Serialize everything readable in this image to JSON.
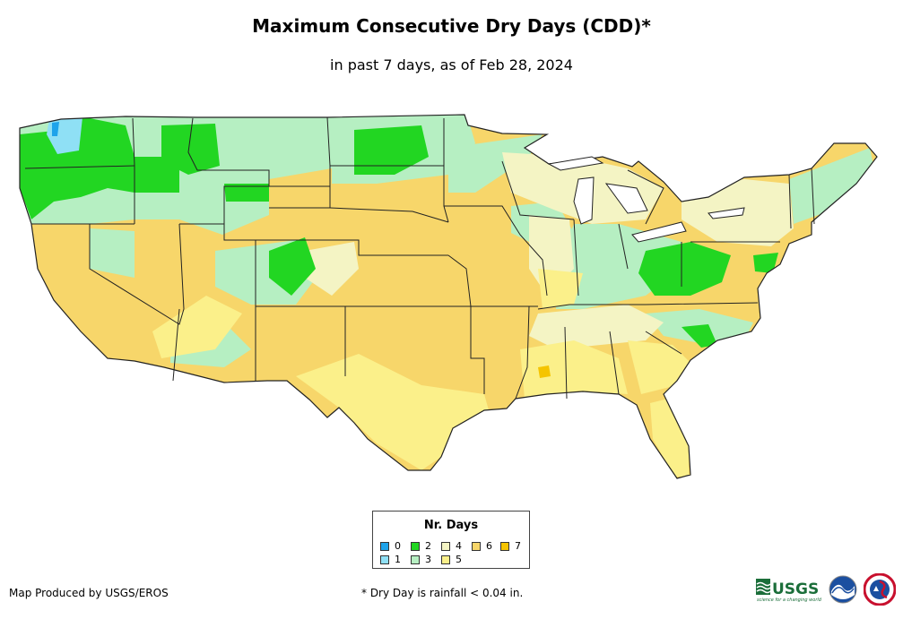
{
  "header": {
    "title": "Maximum Consecutive Dry Days (CDD)*",
    "subtitle": "in past 7 days, as of Feb 28, 2024"
  },
  "legend": {
    "title": "Nr. Days",
    "items": [
      {
        "label": "0",
        "color": "#1ea3ea"
      },
      {
        "label": "1",
        "color": "#8fe0f5"
      },
      {
        "label": "2",
        "color": "#22d622"
      },
      {
        "label": "3",
        "color": "#b6efc2"
      },
      {
        "label": "4",
        "color": "#f4f4c4"
      },
      {
        "label": "5",
        "color": "#fbf08a"
      },
      {
        "label": "6",
        "color": "#f7d66a"
      },
      {
        "label": "7",
        "color": "#f5c400"
      }
    ]
  },
  "footer": {
    "credit": "Map Produced by USGS/EROS",
    "footnote": "* Dry Day is rainfall < 0.04 in.",
    "usgs_logo_text": "USGS",
    "usgs_tagline": "science for a changing world"
  },
  "logos": [
    "usgs-logo",
    "noaa-logo",
    "nws-logo"
  ]
}
